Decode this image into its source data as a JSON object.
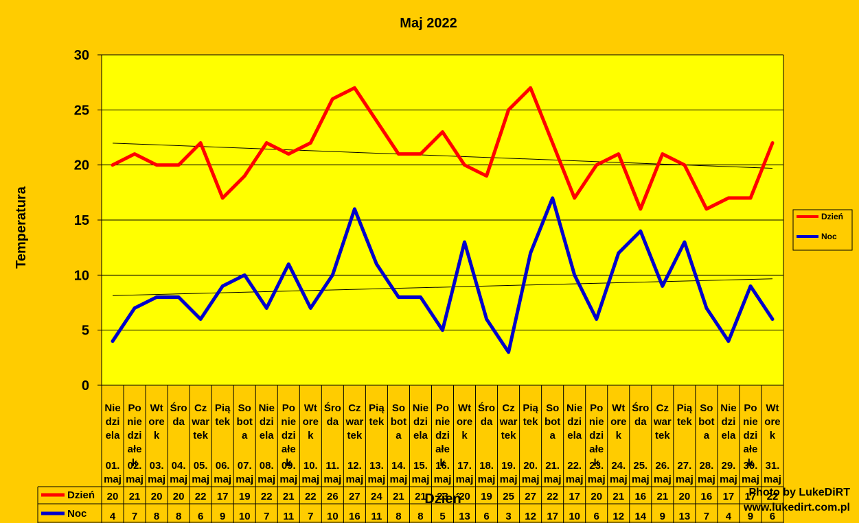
{
  "chart_data": {
    "type": "line",
    "title": "Maj 2022",
    "xlabel": "Dzień",
    "ylabel": "Temperatura",
    "ylim": [
      0,
      30
    ],
    "yticks": [
      0,
      5,
      10,
      15,
      20,
      25,
      30
    ],
    "grid": true,
    "trendlines": true,
    "legend_position": "right",
    "categories": [
      {
        "day": [
          "Nie",
          "dzi",
          "ela"
        ],
        "date": [
          "01.",
          "maj"
        ]
      },
      {
        "day": [
          "Po",
          "nie",
          "dzi",
          "ałe",
          "k"
        ],
        "date": [
          "02.",
          "maj"
        ]
      },
      {
        "day": [
          "Wt",
          "ore",
          "k"
        ],
        "date": [
          "03.",
          "maj"
        ]
      },
      {
        "day": [
          "Śro",
          "da"
        ],
        "date": [
          "04.",
          "maj"
        ]
      },
      {
        "day": [
          "Cz",
          "war",
          "tek"
        ],
        "date": [
          "05.",
          "maj"
        ]
      },
      {
        "day": [
          "Pią",
          "tek"
        ],
        "date": [
          "06.",
          "maj"
        ]
      },
      {
        "day": [
          "So",
          "bot",
          "a"
        ],
        "date": [
          "07.",
          "maj"
        ]
      },
      {
        "day": [
          "Nie",
          "dzi",
          "ela"
        ],
        "date": [
          "08.",
          "maj"
        ]
      },
      {
        "day": [
          "Po",
          "nie",
          "dzi",
          "ałe",
          "k"
        ],
        "date": [
          "09.",
          "maj"
        ]
      },
      {
        "day": [
          "Wt",
          "ore",
          "k"
        ],
        "date": [
          "10.",
          "maj"
        ]
      },
      {
        "day": [
          "Śro",
          "da"
        ],
        "date": [
          "11.",
          "maj"
        ]
      },
      {
        "day": [
          "Cz",
          "war",
          "tek"
        ],
        "date": [
          "12.",
          "maj"
        ]
      },
      {
        "day": [
          "Pią",
          "tek"
        ],
        "date": [
          "13.",
          "maj"
        ]
      },
      {
        "day": [
          "So",
          "bot",
          "a"
        ],
        "date": [
          "14.",
          "maj"
        ]
      },
      {
        "day": [
          "Nie",
          "dzi",
          "ela"
        ],
        "date": [
          "15.",
          "maj"
        ]
      },
      {
        "day": [
          "Po",
          "nie",
          "dzi",
          "ałe",
          "k"
        ],
        "date": [
          "16.",
          "maj"
        ]
      },
      {
        "day": [
          "Wt",
          "ore",
          "k"
        ],
        "date": [
          "17.",
          "maj"
        ]
      },
      {
        "day": [
          "Śro",
          "da"
        ],
        "date": [
          "18.",
          "maj"
        ]
      },
      {
        "day": [
          "Cz",
          "war",
          "tek"
        ],
        "date": [
          "19.",
          "maj"
        ]
      },
      {
        "day": [
          "Pią",
          "tek"
        ],
        "date": [
          "20.",
          "maj"
        ]
      },
      {
        "day": [
          "So",
          "bot",
          "a"
        ],
        "date": [
          "21.",
          "maj"
        ]
      },
      {
        "day": [
          "Nie",
          "dzi",
          "ela"
        ],
        "date": [
          "22.",
          "maj"
        ]
      },
      {
        "day": [
          "Po",
          "nie",
          "dzi",
          "ałe",
          "k"
        ],
        "date": [
          "23.",
          "maj"
        ]
      },
      {
        "day": [
          "Wt",
          "ore",
          "k"
        ],
        "date": [
          "24.",
          "maj"
        ]
      },
      {
        "day": [
          "Śro",
          "da"
        ],
        "date": [
          "25.",
          "maj"
        ]
      },
      {
        "day": [
          "Cz",
          "war",
          "tek"
        ],
        "date": [
          "26.",
          "maj"
        ]
      },
      {
        "day": [
          "Pią",
          "tek"
        ],
        "date": [
          "27.",
          "maj"
        ]
      },
      {
        "day": [
          "So",
          "bot",
          "a"
        ],
        "date": [
          "28.",
          "maj"
        ]
      },
      {
        "day": [
          "Nie",
          "dzi",
          "ela"
        ],
        "date": [
          "29.",
          "maj"
        ]
      },
      {
        "day": [
          "Po",
          "nie",
          "dzi",
          "ałe",
          "k"
        ],
        "date": [
          "30.",
          "maj"
        ]
      },
      {
        "day": [
          "Wt",
          "ore",
          "k"
        ],
        "date": [
          "31.",
          "maj"
        ]
      }
    ],
    "series": [
      {
        "name": "Dzień",
        "color": "#FF0000",
        "values": [
          20,
          21,
          20,
          20,
          22,
          17,
          19,
          22,
          21,
          22,
          26,
          27,
          24,
          21,
          21,
          23,
          20,
          19,
          25,
          27,
          22,
          17,
          20,
          21,
          16,
          21,
          20,
          16,
          17,
          17,
          22
        ]
      },
      {
        "name": "Noc",
        "color": "#0000CC",
        "values": [
          4,
          7,
          8,
          8,
          6,
          9,
          10,
          7,
          11,
          7,
          10,
          16,
          11,
          8,
          8,
          5,
          13,
          6,
          3,
          12,
          17,
          10,
          6,
          12,
          14,
          9,
          13,
          7,
          4,
          9,
          6
        ]
      }
    ]
  },
  "credit": {
    "line1": "Photo by LukeDiRT",
    "line2": "www.lukedirt.com.pl"
  },
  "colors": {
    "background": "#FFCC00",
    "plot_area": "#FFFF00",
    "gridline": "#000000",
    "trendline": "#000000"
  }
}
